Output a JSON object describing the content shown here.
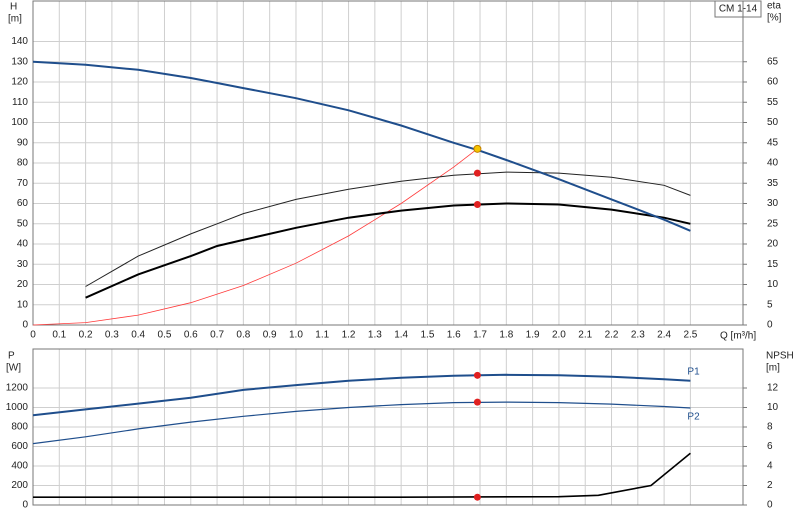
{
  "chart_data": [
    {
      "type": "line",
      "title": "CM 1-14",
      "ylabel": "H",
      "yunit": "[m]",
      "y2label": "eta",
      "y2unit": "[%]",
      "xlabel": "Q [m³/h]",
      "xlim": [
        0,
        2.7
      ],
      "xticks": [
        0,
        0.1,
        0.2,
        0.3,
        0.4,
        0.5,
        0.6,
        0.7,
        0.8,
        0.9,
        {
          "value": 1,
          "label": "1.0"
        },
        1.1,
        1.2,
        1.3,
        1.4,
        1.5,
        1.6,
        1.7,
        1.8,
        1.9,
        {
          "value": 2,
          "label": "2.0"
        },
        2.1,
        2.2,
        2.3,
        2.4,
        2.5
      ],
      "ylim": [
        0,
        160
      ],
      "yticks": [
        0,
        10,
        20,
        30,
        40,
        50,
        60,
        70,
        80,
        90,
        100,
        110,
        120,
        130,
        140
      ],
      "y2lim": [
        0,
        80
      ],
      "y2ticks": [
        0,
        5,
        10,
        15,
        20,
        25,
        30,
        35,
        40,
        45,
        50,
        55,
        60,
        65
      ],
      "grid": true,
      "series": [
        {
          "color": "#ff3b3b",
          "linewidth": 0.8,
          "x": [
            0,
            0.2,
            0.4,
            0.6,
            0.8,
            1.0,
            1.2,
            1.4,
            1.6,
            1.7
          ],
          "values": [
            0,
            1.2,
            4.9,
            11,
            19.5,
            30.5,
            44,
            60,
            78,
            88
          ]
        },
        {
          "color": "#222222",
          "linewidth": 1,
          "axis": "y2",
          "x": [
            0.2,
            0.4,
            0.6,
            0.7,
            0.8,
            1.0,
            1.2,
            1.4,
            1.6,
            1.8,
            2.0,
            2.2,
            2.4,
            2.5
          ],
          "values": [
            9.5,
            17,
            22.5,
            25,
            27.5,
            31,
            33.5,
            35.5,
            37,
            37.75,
            37.5,
            36.5,
            34.5,
            32
          ]
        },
        {
          "color": "#000000",
          "linewidth": 2,
          "axis": "y2",
          "x": [
            0.2,
            0.4,
            0.6,
            0.7,
            0.8,
            1.0,
            1.2,
            1.4,
            1.6,
            1.8,
            2.0,
            2.2,
            2.4,
            2.5
          ],
          "values": [
            6.75,
            12.5,
            17,
            19.5,
            21,
            24,
            26.5,
            28.25,
            29.5,
            30,
            29.75,
            28.5,
            26.5,
            25
          ]
        },
        {
          "color": "#1f4e8c",
          "linewidth": 2,
          "x": [
            0,
            0.2,
            0.4,
            0.6,
            0.7,
            0.8,
            1.0,
            1.2,
            1.4,
            1.6,
            1.7,
            1.8,
            2.0,
            2.2,
            2.4,
            2.5
          ],
          "values": [
            130,
            128.5,
            126,
            122,
            119.5,
            117,
            112,
            106,
            98.5,
            90,
            86,
            81.5,
            72,
            62,
            52,
            46.5
          ]
        }
      ],
      "markers": [
        {
          "x": 1.69,
          "y": 87,
          "color": "#f5c400"
        },
        {
          "x": 1.69,
          "y": 37.5,
          "color": "#e02020",
          "axis": "y2"
        },
        {
          "x": 1.69,
          "y": 29.75,
          "color": "#e02020",
          "axis": "y2"
        }
      ]
    },
    {
      "type": "line",
      "ylabel": "P",
      "yunit": "[W]",
      "y2label": "NPSH",
      "y2unit": "[m]",
      "xlim": [
        0,
        2.7
      ],
      "ylim": [
        0,
        1600
      ],
      "yticks": [
        0,
        200,
        400,
        600,
        800,
        1000,
        1200
      ],
      "y2lim": [
        0,
        16
      ],
      "y2ticks": [
        0,
        2,
        4,
        6,
        8,
        10,
        12
      ],
      "grid": true,
      "series": [
        {
          "name": "P1",
          "color": "#1f4e8c",
          "linewidth": 2,
          "x": [
            0,
            0.2,
            0.4,
            0.6,
            0.8,
            1.0,
            1.2,
            1.4,
            1.6,
            1.8,
            2.0,
            2.2,
            2.4,
            2.5
          ],
          "values": [
            920,
            980,
            1040,
            1100,
            1180,
            1230,
            1275,
            1305,
            1325,
            1335,
            1330,
            1315,
            1290,
            1275
          ]
        },
        {
          "name": "P2",
          "color": "#1f4e8c",
          "linewidth": 1.2,
          "x": [
            0,
            0.2,
            0.4,
            0.6,
            0.8,
            1.0,
            1.2,
            1.4,
            1.6,
            1.8,
            2.0,
            2.2,
            2.4,
            2.5
          ],
          "values": [
            630,
            700,
            780,
            850,
            910,
            960,
            1000,
            1030,
            1050,
            1055,
            1050,
            1035,
            1010,
            995
          ]
        },
        {
          "color": "#000000",
          "linewidth": 1.6,
          "axis": "y2",
          "x": [
            0,
            0.7,
            1.4,
            2.0,
            2.15,
            2.35,
            2.5
          ],
          "values": [
            0.8,
            0.8,
            0.8,
            0.85,
            1.0,
            2.0,
            5.3
          ]
        }
      ],
      "markers": [
        {
          "x": 1.69,
          "y": 1330,
          "color": "#e02020"
        },
        {
          "x": 1.69,
          "y": 1055,
          "color": "#e02020"
        },
        {
          "x": 1.69,
          "y": 0.8,
          "color": "#e02020",
          "axis": "y2"
        }
      ]
    }
  ]
}
